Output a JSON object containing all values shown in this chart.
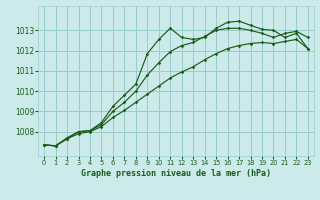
{
  "title": "Graphe pression niveau de la mer (hPa)",
  "bg_color": "#cceaea",
  "grid_color": "#99cccc",
  "line_color": "#1a5c1a",
  "xlim": [
    -0.5,
    23.5
  ],
  "ylim": [
    1006.8,
    1014.2
  ],
  "yticks": [
    1008,
    1009,
    1010,
    1011,
    1012,
    1013
  ],
  "xticks": [
    0,
    1,
    2,
    3,
    4,
    5,
    6,
    7,
    8,
    9,
    10,
    11,
    12,
    13,
    14,
    15,
    16,
    17,
    18,
    19,
    20,
    21,
    22,
    23
  ],
  "line1_x": [
    0,
    1,
    2,
    3,
    4,
    5,
    6,
    7,
    8,
    9,
    10,
    11,
    12,
    13,
    14,
    15,
    16,
    17,
    18,
    19,
    20,
    21,
    22,
    23
  ],
  "line1_y": [
    1007.35,
    1007.3,
    1007.7,
    1008.0,
    1008.05,
    1008.45,
    1009.25,
    1009.8,
    1010.35,
    1011.85,
    1012.55,
    1013.1,
    1012.65,
    1012.55,
    1012.65,
    1013.1,
    1013.4,
    1013.45,
    1013.25,
    1013.05,
    1013.0,
    1012.65,
    1012.85,
    1012.1
  ],
  "line2_x": [
    0,
    1,
    2,
    3,
    4,
    5,
    6,
    7,
    8,
    9,
    10,
    11,
    12,
    13,
    14,
    15,
    16,
    17,
    18,
    19,
    20,
    21,
    22,
    23
  ],
  "line2_y": [
    1007.35,
    1007.3,
    1007.65,
    1008.0,
    1008.05,
    1008.35,
    1009.0,
    1009.45,
    1010.0,
    1010.8,
    1011.4,
    1011.95,
    1012.25,
    1012.4,
    1012.7,
    1013.0,
    1013.1,
    1013.1,
    1013.0,
    1012.85,
    1012.65,
    1012.85,
    1012.95,
    1012.65
  ],
  "line3_x": [
    0,
    1,
    2,
    3,
    4,
    5,
    6,
    7,
    8,
    9,
    10,
    11,
    12,
    13,
    14,
    15,
    16,
    17,
    18,
    19,
    20,
    21,
    22,
    23
  ],
  "line3_y": [
    1007.35,
    1007.3,
    1007.65,
    1007.9,
    1008.0,
    1008.25,
    1008.7,
    1009.05,
    1009.45,
    1009.85,
    1010.25,
    1010.65,
    1010.95,
    1011.2,
    1011.55,
    1011.85,
    1012.1,
    1012.25,
    1012.35,
    1012.4,
    1012.35,
    1012.45,
    1012.55,
    1012.1
  ]
}
